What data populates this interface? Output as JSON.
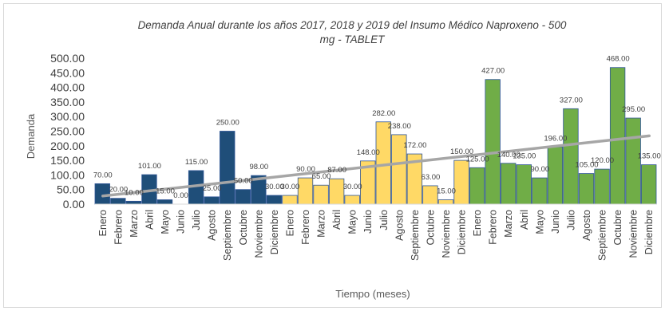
{
  "chart_data": {
    "type": "bar",
    "title_lines": [
      "Demanda Anual durante los años 2017, 2018 y 2019 del Insumo Médico Naproxeno - 500",
      "mg - TABLET"
    ],
    "xlabel": "Tiempo (meses)",
    "ylabel": "Demanda",
    "ylim": [
      0,
      500
    ],
    "yticks": [
      "0.00",
      "50.00",
      "100.00",
      "150.00",
      "200.00",
      "250.00",
      "300.00",
      "350.00",
      "400.00",
      "450.00",
      "500.00"
    ],
    "grid": false,
    "legend": "none",
    "categories": [
      "Enero",
      "Febrero",
      "Marzo",
      "Abril",
      "Mayo",
      "Junio",
      "Julio",
      "Agosto",
      "Septiembre",
      "Octubre",
      "Noviembre",
      "Diciembre",
      "Enero",
      "Febrero",
      "Marzo",
      "Abril",
      "Mayo",
      "Junio",
      "Julio",
      "Agosto",
      "Septiembre",
      "Octubre",
      "Noviembre",
      "Diciembre",
      "Enero",
      "Febrero",
      "Marzo",
      "Abril",
      "Mayo",
      "Junio",
      "Julio",
      "Agosto",
      "Septiembre",
      "Octubre",
      "Noviembre",
      "Diciembre"
    ],
    "values": [
      70,
      20,
      10,
      101,
      15,
      0,
      115,
      25,
      250,
      50,
      98,
      30,
      30,
      90,
      65,
      87,
      30,
      148,
      282,
      238,
      172,
      63,
      15,
      150,
      125,
      427,
      140,
      135,
      90,
      196,
      327,
      105,
      120,
      468,
      295,
      135
    ],
    "data_labels": [
      "70.00",
      "20.00",
      "10.00",
      "101.00",
      "15.00",
      "0.00",
      "115.00",
      "25.00",
      "250.00",
      "50.00",
      "98.00",
      "30.00",
      "30.00",
      "90.00",
      "65.00",
      "87.00",
      "30.00",
      "148.00",
      "282.00",
      "238.00",
      "172.00",
      "63.00",
      "15.00",
      "150.00",
      "125.00",
      "427.00",
      "140.00",
      "135.00",
      "90.00",
      "196.00",
      "327.00",
      "105.00",
      "120.00",
      "468.00",
      "295.00",
      "135.00"
    ],
    "year_colors": [
      "#1f4e79",
      "#ffd966",
      "#70ad47"
    ],
    "trendline": {
      "type": "linear",
      "color": "#a6a6a6",
      "start_value": 28,
      "end_value": 234
    }
  }
}
